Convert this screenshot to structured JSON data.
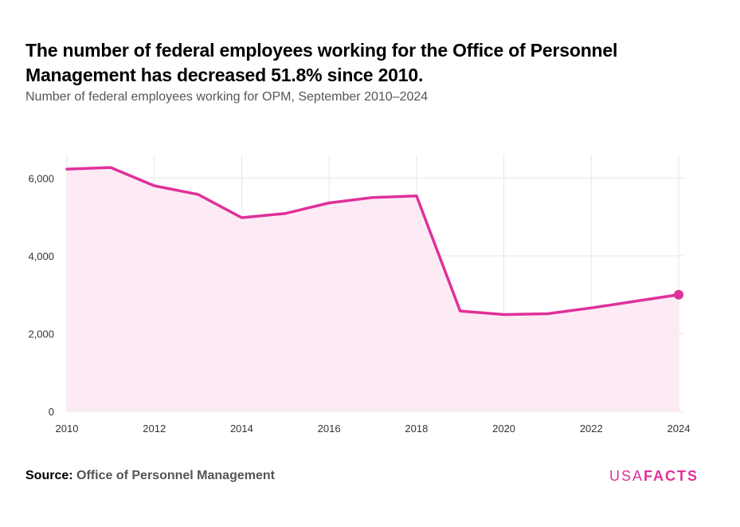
{
  "header": {
    "title": "The number of federal employees working for the Office of Personnel Management has decreased 51.8% since 2010.",
    "subtitle": "Number of federal employees working for OPM, September 2010–2024"
  },
  "footer": {
    "source_label": "Source:",
    "source_value": "Office of Personnel Management",
    "logo_light": "USA",
    "logo_bold": "FACTS"
  },
  "colors": {
    "accent": "#e0309a",
    "area_fill": "#fcebf4",
    "gridline": "#e6e6e6"
  },
  "chart_data": {
    "type": "area",
    "title": "The number of federal employees working for the Office of Personnel Management has decreased 51.8% since 2010.",
    "subtitle": "Number of federal employees working for OPM, September 2010–2024",
    "xlabel": "",
    "ylabel": "",
    "x": [
      2010,
      2011,
      2012,
      2013,
      2014,
      2015,
      2016,
      2017,
      2018,
      2019,
      2020,
      2021,
      2022,
      2023,
      2024
    ],
    "series": [
      {
        "values": [
          6230,
          6270,
          5800,
          5580,
          4980,
          5090,
          5360,
          5500,
          5540,
          2580,
          2490,
          2510,
          2660,
          2830,
          3000
        ]
      }
    ],
    "xlim": [
      2010,
      2024
    ],
    "ylim": [
      0,
      6600
    ],
    "x_ticks": [
      2010,
      2012,
      2014,
      2016,
      2018,
      2020,
      2022,
      2024
    ],
    "y_ticks": [
      0,
      2000,
      4000,
      6000
    ],
    "y_tick_labels": [
      "0",
      "2,000",
      "4,000",
      "6,000"
    ],
    "x_tick_labels": [
      "2010",
      "2012",
      "2014",
      "2016",
      "2018",
      "2020",
      "2022",
      "2024"
    ],
    "grid": true,
    "end_marker": true,
    "legend": "none"
  }
}
